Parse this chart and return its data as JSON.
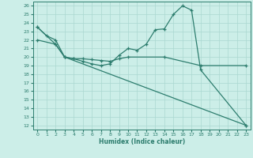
{
  "xlabel": "Humidex (Indice chaleur)",
  "xlim": [
    -0.5,
    23.5
  ],
  "ylim": [
    11.5,
    26.5
  ],
  "bg_color": "#cceee8",
  "line_color": "#2d7d6e",
  "grid_color": "#aad8d0",
  "curve1_x": [
    0,
    1,
    2,
    3,
    4,
    5,
    6,
    7,
    8,
    9,
    10,
    11,
    12,
    13,
    14,
    15,
    16,
    17,
    18,
    23
  ],
  "curve1_y": [
    23.5,
    22.5,
    22.0,
    20.0,
    19.8,
    19.5,
    19.2,
    19.0,
    19.2,
    20.2,
    21.0,
    20.8,
    21.5,
    23.2,
    23.3,
    25.0,
    26.0,
    25.5,
    18.5,
    12.0
  ],
  "curve2_x": [
    0,
    2,
    3,
    4,
    5,
    6,
    7,
    8,
    9,
    10,
    14,
    18,
    23
  ],
  "curve2_y": [
    22.0,
    21.5,
    20.0,
    19.8,
    19.8,
    19.7,
    19.6,
    19.5,
    19.8,
    20.0,
    20.0,
    19.0,
    19.0
  ],
  "curve3_x": [
    0,
    2,
    3,
    23
  ],
  "curve3_y": [
    23.5,
    21.5,
    20.0,
    12.0
  ],
  "xticks": [
    0,
    1,
    2,
    3,
    4,
    5,
    6,
    7,
    8,
    9,
    10,
    11,
    12,
    13,
    14,
    15,
    16,
    17,
    18,
    19,
    20,
    21,
    22,
    23
  ],
  "yticks": [
    12,
    13,
    14,
    15,
    16,
    17,
    18,
    19,
    20,
    21,
    22,
    23,
    24,
    25,
    26
  ]
}
